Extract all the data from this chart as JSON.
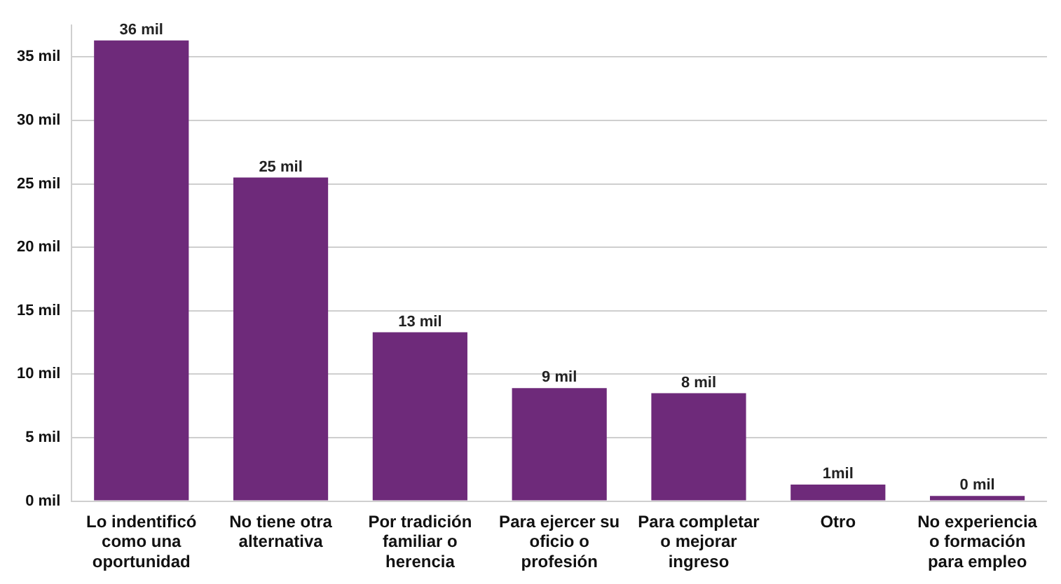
{
  "chart_data": {
    "type": "bar",
    "categories": [
      "Lo indentificó como una oportunidad",
      "No tiene otra alternativa",
      "Por tradición familiar o herencia",
      "Para ejercer su oficio o profesión",
      "Para completar o mejorar ingreso",
      "Otro",
      "No experiencia o formación para empleo"
    ],
    "values": [
      36.3,
      25.5,
      13.3,
      8.9,
      8.5,
      1.3,
      0.4
    ],
    "value_labels": [
      "36 mil",
      "25 mil",
      "13 mil",
      "9 mil",
      "8 mil",
      "1mil",
      "0 mil"
    ],
    "color": "#6e2a7a",
    "ylim": [
      0,
      37.5
    ],
    "yticks": [
      {
        "value": 0,
        "label": "0 mil"
      },
      {
        "value": 5,
        "label": "5 mil"
      },
      {
        "value": 10,
        "label": "10 mil"
      },
      {
        "value": 15,
        "label": "15 mil"
      },
      {
        "value": 20,
        "label": "20 mil"
      },
      {
        "value": 25,
        "label": "25 mil"
      },
      {
        "value": 30,
        "label": "30 mil"
      },
      {
        "value": 35,
        "label": "35 mil"
      }
    ],
    "grid": "y",
    "legend": false
  }
}
